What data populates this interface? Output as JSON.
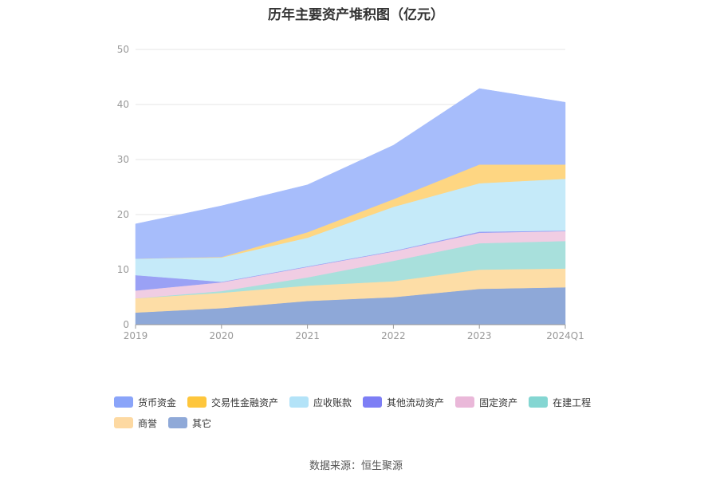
{
  "chart_data": {
    "type": "area",
    "title": "历年主要资产堆积图（亿元）",
    "categories": [
      "2019",
      "2020",
      "2021",
      "2022",
      "2023",
      "2024Q1"
    ],
    "ylim": [
      0,
      50
    ],
    "yticks": [
      0,
      10,
      20,
      30,
      40,
      50
    ],
    "stacked": true,
    "grid": true,
    "legend_position": "bottom",
    "series": [
      {
        "name": "其它",
        "color": "#8ea8d8",
        "values": [
          2.2,
          3.0,
          4.3,
          5.0,
          6.5,
          6.8
        ]
      },
      {
        "name": "商誉",
        "color": "#fddda6",
        "values": [
          2.6,
          2.8,
          2.8,
          2.9,
          3.5,
          3.4
        ]
      },
      {
        "name": "在建工程",
        "color": "#a8e0dc",
        "values": [
          0.0,
          0.3,
          1.5,
          3.7,
          4.8,
          5.0
        ]
      },
      {
        "name": "固定资产",
        "color": "#f0cde3",
        "values": [
          1.4,
          1.6,
          1.9,
          1.7,
          1.9,
          1.8
        ]
      },
      {
        "name": "其他流动资产",
        "color": "#9aa1f5",
        "values": [
          2.8,
          0.1,
          0.1,
          0.1,
          0.2,
          0.1
        ]
      },
      {
        "name": "应收账款",
        "color": "#c5eaf9",
        "values": [
          3.0,
          4.4,
          5.2,
          8.0,
          8.8,
          9.4
        ]
      },
      {
        "name": "交易性金融资产",
        "color": "#fed682",
        "values": [
          0.0,
          0.1,
          1.0,
          1.4,
          3.4,
          2.6
        ]
      },
      {
        "name": "货币资金",
        "color": "#a7bdfb",
        "values": [
          6.3,
          9.3,
          8.6,
          9.8,
          13.8,
          11.3
        ]
      }
    ]
  },
  "legend": [
    {
      "label": "货币资金",
      "color": "#8aa4f9"
    },
    {
      "label": "交易性金融资产",
      "color": "#fec63c"
    },
    {
      "label": "应收账款",
      "color": "#b3e3f8"
    },
    {
      "label": "其他流动资产",
      "color": "#7d7ef5"
    },
    {
      "label": "固定资产",
      "color": "#eab8d9"
    },
    {
      "label": "在建工程",
      "color": "#84d6d2"
    },
    {
      "label": "商誉",
      "color": "#fdd9a2"
    },
    {
      "label": "其它",
      "color": "#8fa9d8"
    }
  ],
  "source": "数据来源：恒生聚源"
}
